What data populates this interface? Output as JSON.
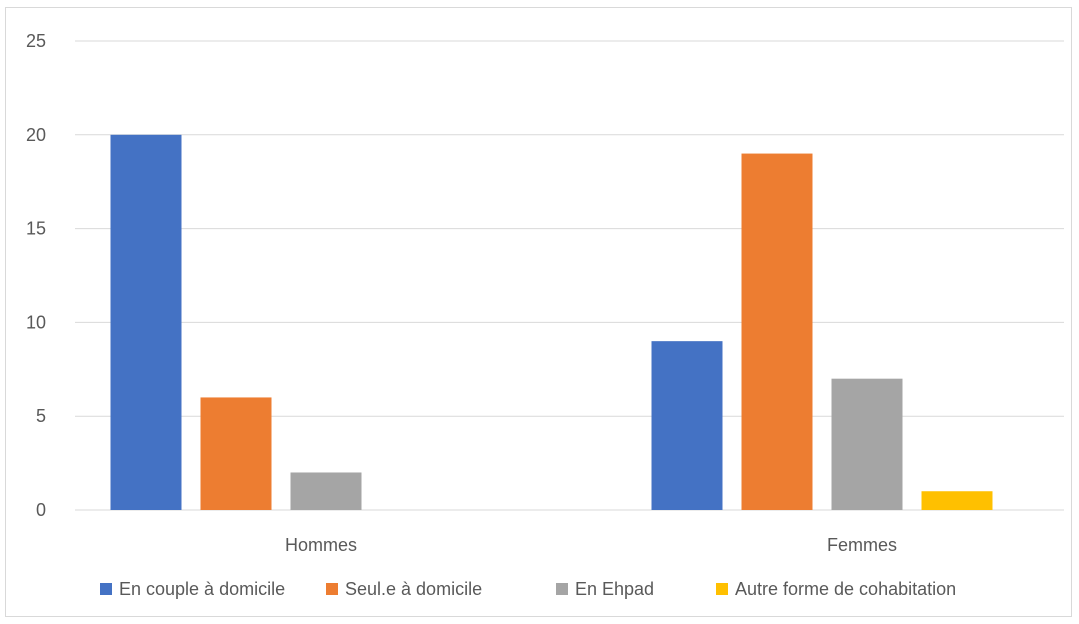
{
  "chart_data": {
    "type": "bar",
    "categories": [
      "Hommes",
      "Femmes"
    ],
    "series": [
      {
        "name": "En couple à domicile",
        "color": "#4472C4",
        "values": [
          20,
          9
        ]
      },
      {
        "name": "Seul.e à domicile",
        "color": "#ED7D31",
        "values": [
          6,
          19
        ]
      },
      {
        "name": "En Ehpad",
        "color": "#A5A5A5",
        "values": [
          2,
          7
        ]
      },
      {
        "name": "Autre forme de cohabitation",
        "color": "#FFC000",
        "values": [
          0,
          1
        ]
      }
    ],
    "ylim": [
      0,
      25
    ],
    "yticks": [
      "0",
      "5",
      "10",
      "15",
      "20",
      "25"
    ],
    "grid": true,
    "legend_position": "bottom",
    "title": "",
    "xlabel": "",
    "ylabel": ""
  }
}
